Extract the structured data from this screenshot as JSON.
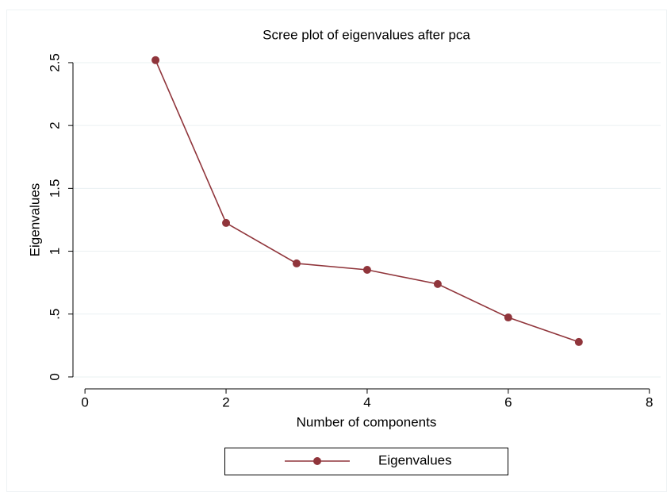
{
  "chart_data": {
    "type": "line",
    "title": "Scree plot of eigenvalues after pca",
    "x_label": "Number of components",
    "y_label": "Eigenvalues",
    "x": [
      1,
      2,
      3,
      4,
      5,
      6,
      7
    ],
    "series": [
      {
        "name": "Eigenvalues",
        "color": "#90353b",
        "values": [
          2.52,
          1.225,
          0.903,
          0.852,
          0.739,
          0.473,
          0.278
        ]
      }
    ],
    "xlim": [
      -0.17,
      8.16
    ],
    "ylim": [
      -0.095,
      2.91
    ],
    "xticks": [
      0,
      2,
      4,
      6,
      8
    ],
    "yticks": [
      0,
      {
        "value": 0.5,
        "label": ".5"
      },
      1,
      1.5,
      2,
      2.5
    ],
    "grid": true,
    "legend": "bottom"
  }
}
